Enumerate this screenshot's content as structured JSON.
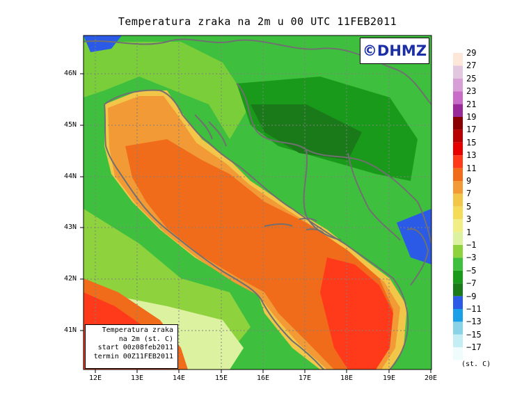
{
  "title": "Temperatura zraka na 2m u 00 UTC 11FEB2011",
  "copyright": "©DHMZ",
  "info_box": [
    "Temperatura zraka",
    "na 2m (st. C)",
    "start 00z08feb2011",
    "termin 00Z11FEB2011"
  ],
  "lat_labels": [
    "46N",
    "45N",
    "44N",
    "43N",
    "42N",
    "41N"
  ],
  "lon_labels": [
    "12E",
    "13E",
    "14E",
    "15E",
    "16E",
    "17E",
    "18E",
    "19E",
    "20E"
  ],
  "colorbar": {
    "unit": "(st. C)",
    "labels": [
      "29",
      "27",
      "25",
      "23",
      "21",
      "19",
      "17",
      "15",
      "13",
      "11",
      "9",
      "7",
      "5",
      "3",
      "1",
      "−1",
      "−3",
      "−5",
      "−7",
      "−9",
      "−11",
      "−13",
      "−15",
      "−17"
    ],
    "colors": [
      "#fde7d8",
      "#e2c7e0",
      "#d89ed6",
      "#c86cc8",
      "#9a2a9a",
      "#8a0000",
      "#b80000",
      "#e60000",
      "#ff3a1a",
      "#f06c1a",
      "#f29a36",
      "#f2c648",
      "#f4dc58",
      "#f0ee84",
      "#dcf2a0",
      "#8ed23e",
      "#3ec03e",
      "#1a9a1a",
      "#1a7a1a",
      "#2a5ae6",
      "#1aa0e6",
      "#8ad2e6",
      "#c4eef4",
      "#eefcfc"
    ]
  }
}
